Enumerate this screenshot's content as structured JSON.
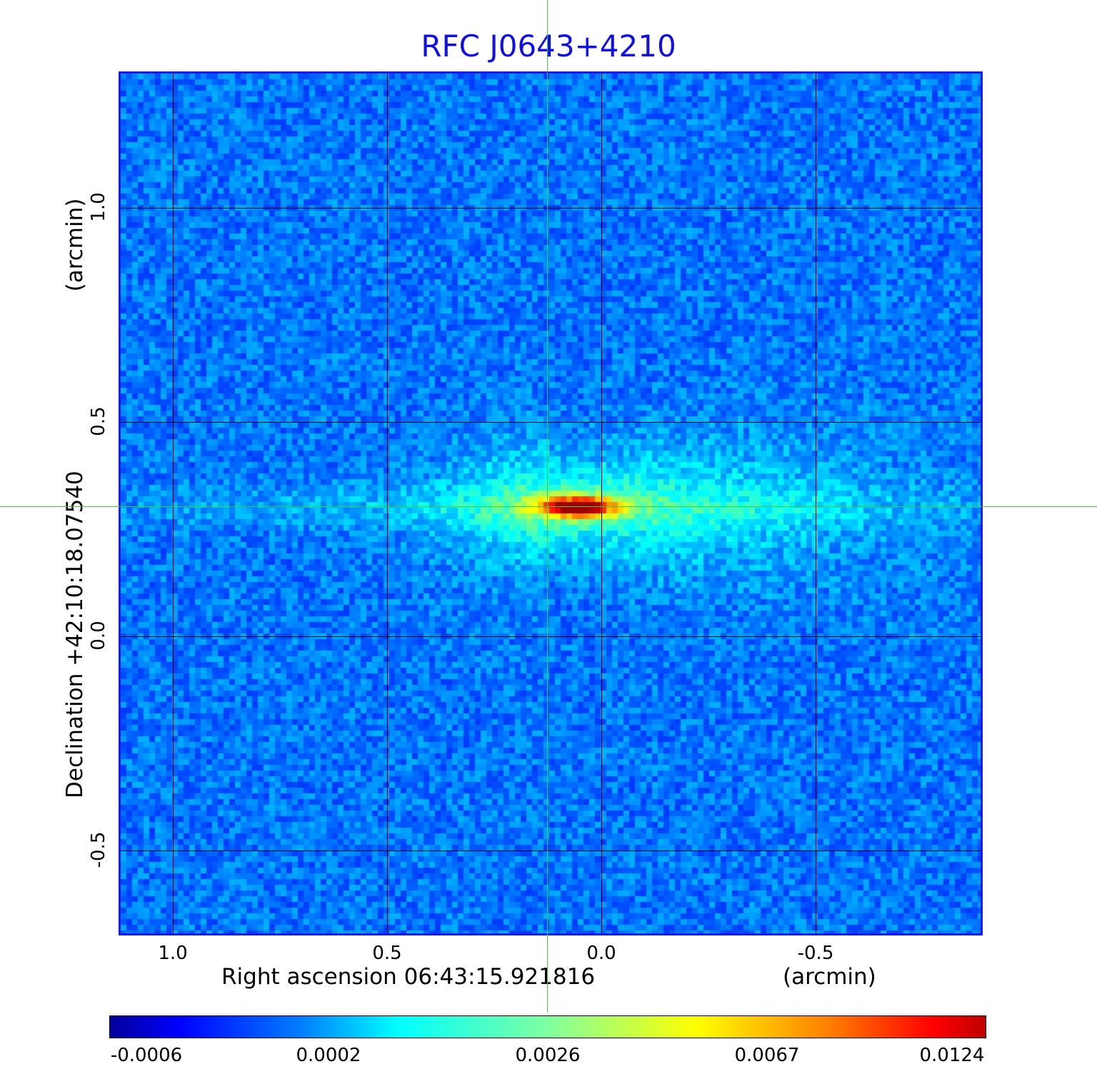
{
  "chart_data": {
    "type": "heatmap",
    "title": "RFC J0643+4210",
    "xlabel": "Right ascension  06:43:15.921816",
    "xunit": "(arcmin)",
    "ylabel": "Declination  +42:10:18.07540",
    "yunit": "(arcmin)",
    "x_ticks": [
      "1.0",
      "0.5",
      "0.0",
      "-0.5"
    ],
    "x_tick_values": [
      1.0,
      0.5,
      0.0,
      -0.5
    ],
    "y_ticks": [
      "1.0",
      "0.5",
      "0.0",
      "-0.5"
    ],
    "y_tick_values": [
      1.0,
      0.5,
      0.0,
      -0.5
    ],
    "xlim": [
      1.13,
      -0.89
    ],
    "ylim": [
      -0.7,
      1.32
    ],
    "grid": true,
    "crosshair": {
      "x": 0.125,
      "y": 0.3
    },
    "source_peak": {
      "x": 0.08,
      "y": 0.3,
      "value": 0.0124
    },
    "colorbar": {
      "colormap": "jet",
      "tick_labels": [
        "-0.0006",
        "0.0002",
        "0.0026",
        "0.0067",
        "0.0124"
      ],
      "placement": "bottom"
    }
  }
}
